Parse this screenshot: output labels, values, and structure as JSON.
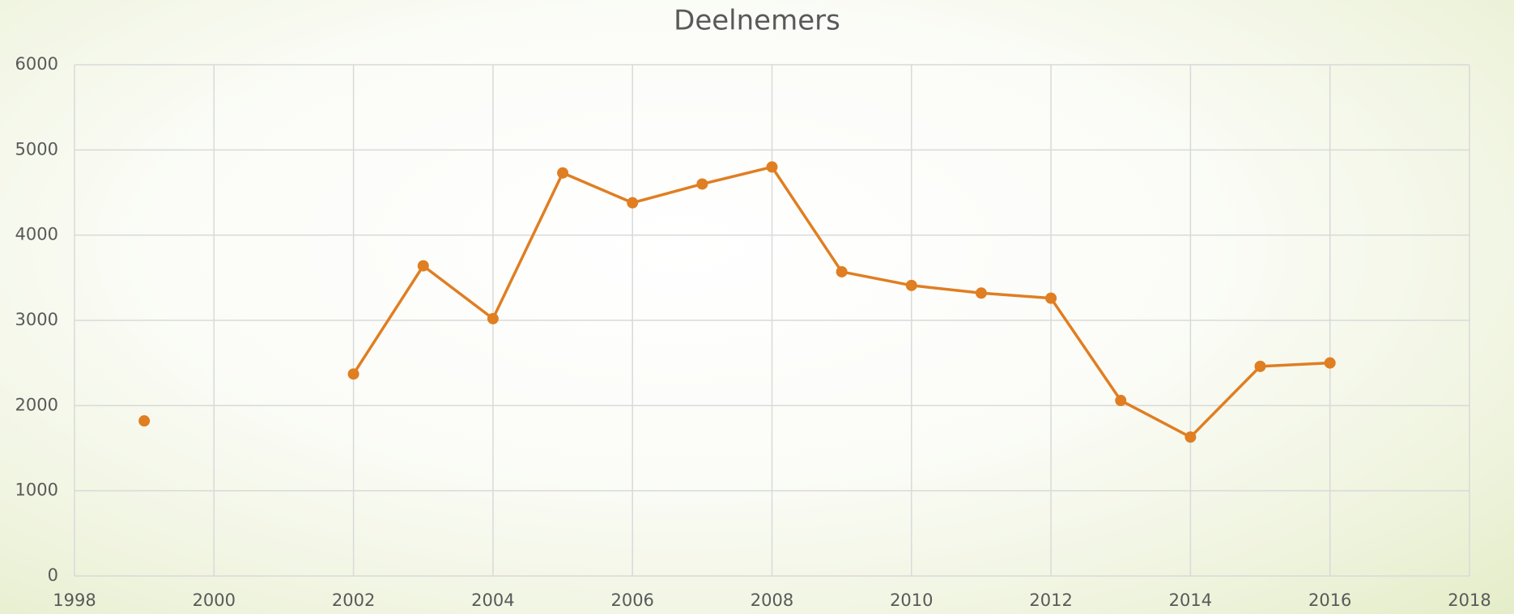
{
  "chart_data": {
    "type": "line",
    "title": "Deelnemers",
    "x": [
      1999,
      2000,
      2001,
      2002,
      2003,
      2004,
      2005,
      2006,
      2007,
      2008,
      2009,
      2010,
      2011,
      2012,
      2013,
      2014,
      2015,
      2016
    ],
    "series": [
      {
        "name": "Deelnemers",
        "color": "#e07e22",
        "values": [
          1820,
          null,
          null,
          2370,
          3640,
          3020,
          4730,
          4380,
          4600,
          4800,
          3570,
          3410,
          3320,
          3260,
          2060,
          1630,
          2460,
          2500
        ]
      }
    ],
    "xlim": [
      1998,
      2018
    ],
    "xticks": [
      1998,
      2000,
      2002,
      2004,
      2006,
      2008,
      2010,
      2012,
      2014,
      2016,
      2018
    ],
    "ylim": [
      0,
      6000
    ],
    "yticks": [
      0,
      1000,
      2000,
      3000,
      4000,
      5000,
      6000
    ],
    "grid": true
  }
}
